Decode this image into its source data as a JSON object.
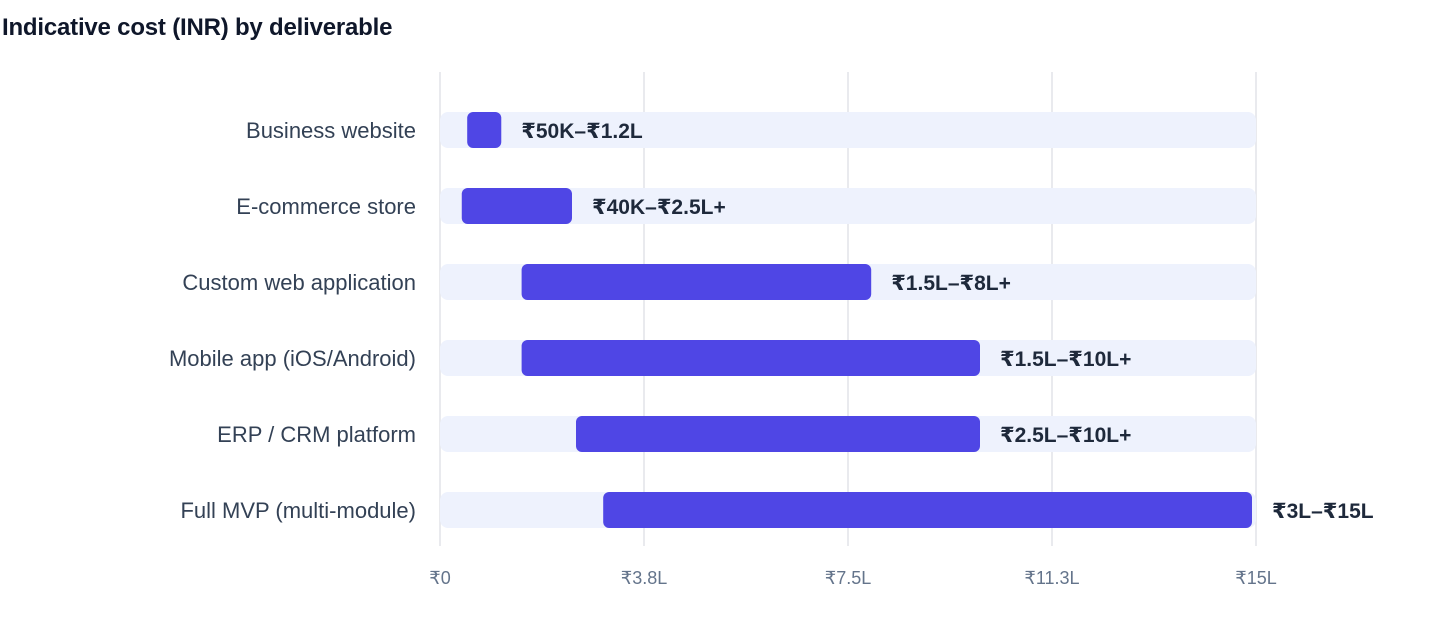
{
  "chart_data": {
    "type": "bar",
    "orientation": "horizontal",
    "subtype": "range",
    "title": "Indicative cost (INR) by deliverable",
    "xlabel": "",
    "ylabel": "",
    "unit": "INR lakh",
    "xlim": [
      0,
      15
    ],
    "xticks": [
      0,
      3.75,
      7.5,
      11.25,
      15
    ],
    "xtick_labels": [
      "₹0",
      "₹3.8L",
      "₹7.5L",
      "₹11.3L",
      "₹15L"
    ],
    "grid": "vertical",
    "legend": "none",
    "categories": [
      "Business website",
      "E-commerce store",
      "Custom web application",
      "Mobile app (iOS/Android)",
      "ERP / CRM platform",
      "Full MVP (multi-module)"
    ],
    "series": [
      {
        "ranges": [
          [
            0.5,
            1.2
          ],
          [
            0.4,
            2.5
          ],
          [
            1.5,
            8
          ],
          [
            1.5,
            10
          ],
          [
            2.5,
            10
          ],
          [
            3,
            15
          ]
        ],
        "labels": [
          "₹50K–₹1.2L",
          "₹40K–₹2.5L+",
          "₹1.5L–₹8L+",
          "₹1.5L–₹10L+",
          "₹2.5L–₹10L+",
          "₹3L–₹15L"
        ]
      }
    ],
    "colors": {
      "bar": "#4f46e5",
      "track": "#eef2fd",
      "grid": "#e2e4e8"
    }
  }
}
